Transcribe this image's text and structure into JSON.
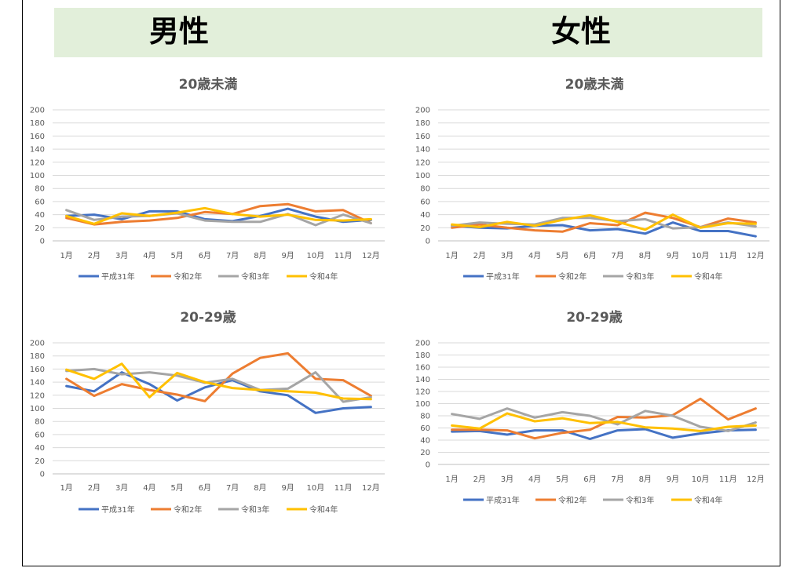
{
  "headings": {
    "male": "男性",
    "female": "女性"
  },
  "colors": {
    "banner": "#e2efda",
    "gridline": "#d9d9d9",
    "text": "#595959"
  },
  "chart_data": [
    {
      "type": "line",
      "title": "20歳未満",
      "categories": [
        "1月",
        "2月",
        "3月",
        "4月",
        "5月",
        "6月",
        "7月",
        "8月",
        "9月",
        "10月",
        "11月",
        "12月"
      ],
      "ylim": [
        0,
        200
      ],
      "yticks": [
        "0",
        "20",
        "40",
        "60",
        "80",
        "100",
        "120",
        "140",
        "160",
        "180",
        "200"
      ],
      "legend_position": "bottom",
      "series": [
        {
          "name": "平成31年",
          "color": "#4472c4",
          "values": [
            38,
            40,
            33,
            45,
            45,
            33,
            30,
            38,
            49,
            37,
            29,
            32
          ]
        },
        {
          "name": "令和2年",
          "color": "#ed7d31",
          "values": [
            35,
            25,
            29,
            31,
            35,
            44,
            41,
            53,
            56,
            45,
            47,
            27
          ]
        },
        {
          "name": "令和3年",
          "color": "#a5a5a5",
          "values": [
            47,
            32,
            37,
            38,
            42,
            31,
            29,
            29,
            41,
            24,
            40,
            27
          ]
        },
        {
          "name": "令和4年",
          "color": "#ffc000",
          "values": [
            38,
            26,
            42,
            38,
            43,
            50,
            41,
            37,
            40,
            32,
            31,
            33
          ]
        }
      ]
    },
    {
      "type": "line",
      "title": "20歳未満",
      "categories": [
        "1月",
        "2月",
        "3月",
        "4月",
        "5月",
        "6月",
        "7月",
        "8月",
        "9月",
        "10月",
        "11月",
        "12月"
      ],
      "ylim": [
        0,
        200
      ],
      "yticks": [
        "0",
        "20",
        "40",
        "60",
        "80",
        "100",
        "120",
        "140",
        "160",
        "180",
        "200"
      ],
      "legend_position": "bottom",
      "series": [
        {
          "name": "平成31年",
          "color": "#4472c4",
          "values": [
            23,
            20,
            19,
            23,
            24,
            16,
            18,
            11,
            28,
            15,
            15,
            7
          ]
        },
        {
          "name": "令和2年",
          "color": "#ed7d31",
          "values": [
            20,
            25,
            20,
            16,
            14,
            27,
            24,
            43,
            35,
            21,
            34,
            28
          ]
        },
        {
          "name": "令和3年",
          "color": "#a5a5a5",
          "values": [
            23,
            28,
            26,
            25,
            35,
            35,
            30,
            33,
            19,
            21,
            28,
            22
          ]
        },
        {
          "name": "令和4年",
          "color": "#ffc000",
          "values": [
            25,
            21,
            29,
            23,
            32,
            39,
            29,
            17,
            40,
            20,
            27,
            26
          ]
        }
      ]
    },
    {
      "type": "line",
      "title": "20-29歳",
      "categories": [
        "1月",
        "2月",
        "3月",
        "4月",
        "5月",
        "6月",
        "7月",
        "8月",
        "9月",
        "10月",
        "11月",
        "12月"
      ],
      "ylim": [
        0,
        200
      ],
      "yticks": [
        "0",
        "20",
        "40",
        "60",
        "80",
        "100",
        "120",
        "140",
        "160",
        "180",
        "200"
      ],
      "legend_position": "bottom",
      "series": [
        {
          "name": "平成31年",
          "color": "#4472c4",
          "values": [
            134,
            126,
            155,
            137,
            112,
            132,
            143,
            126,
            120,
            93,
            100,
            102
          ]
        },
        {
          "name": "令和2年",
          "color": "#ed7d31",
          "values": [
            145,
            119,
            137,
            128,
            121,
            111,
            153,
            177,
            184,
            145,
            143,
            119
          ]
        },
        {
          "name": "令和3年",
          "color": "#a5a5a5",
          "values": [
            157,
            160,
            152,
            155,
            150,
            139,
            145,
            128,
            130,
            155,
            110,
            117
          ]
        },
        {
          "name": "令和4年",
          "color": "#ffc000",
          "values": [
            159,
            145,
            168,
            117,
            154,
            140,
            131,
            128,
            126,
            124,
            115,
            114
          ]
        }
      ]
    },
    {
      "type": "line",
      "title": "20-29歳",
      "categories": [
        "1月",
        "2月",
        "3月",
        "4月",
        "5月",
        "6月",
        "7月",
        "8月",
        "9月",
        "10月",
        "11月",
        "12月"
      ],
      "ylim": [
        0,
        200
      ],
      "yticks": [
        "0",
        "20",
        "40",
        "60",
        "80",
        "100",
        "120",
        "140",
        "160",
        "180",
        "200"
      ],
      "legend_position": "bottom",
      "series": [
        {
          "name": "平成31年",
          "color": "#4472c4",
          "values": [
            54,
            55,
            49,
            56,
            56,
            42,
            56,
            58,
            44,
            51,
            56,
            57
          ]
        },
        {
          "name": "令和2年",
          "color": "#ed7d31",
          "values": [
            57,
            57,
            56,
            43,
            52,
            57,
            78,
            77,
            81,
            108,
            74,
            92
          ]
        },
        {
          "name": "令和3年",
          "color": "#a5a5a5",
          "values": [
            83,
            75,
            92,
            77,
            86,
            80,
            66,
            88,
            80,
            62,
            55,
            69
          ]
        },
        {
          "name": "令和4年",
          "color": "#ffc000",
          "values": [
            64,
            59,
            84,
            71,
            76,
            68,
            70,
            61,
            59,
            55,
            62,
            64
          ]
        }
      ]
    }
  ]
}
